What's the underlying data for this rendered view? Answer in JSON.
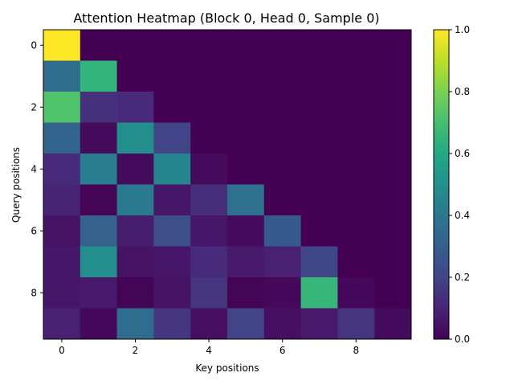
{
  "chart_data": {
    "type": "heatmap",
    "title": "Attention Heatmap (Block 0, Head 0, Sample 0)",
    "xlabel": "Key positions",
    "ylabel": "Query positions",
    "x_ticks": [
      0,
      2,
      4,
      6,
      8
    ],
    "y_ticks": [
      0,
      2,
      4,
      6,
      8
    ],
    "colorbar_ticks": [
      "0.0",
      "0.2",
      "0.4",
      "0.6",
      "0.8",
      "1.0"
    ],
    "colormap": "viridis",
    "vmin": 0.0,
    "vmax": 1.0,
    "rows": 10,
    "cols": 10,
    "values": [
      [
        1.0,
        0.0,
        0.0,
        0.0,
        0.0,
        0.0,
        0.0,
        0.0,
        0.0,
        0.0
      ],
      [
        0.35,
        0.65,
        0.0,
        0.0,
        0.0,
        0.0,
        0.0,
        0.0,
        0.0,
        0.0
      ],
      [
        0.72,
        0.14,
        0.12,
        0.0,
        0.0,
        0.0,
        0.0,
        0.0,
        0.0,
        0.0
      ],
      [
        0.32,
        0.03,
        0.49,
        0.2,
        0.0,
        0.0,
        0.0,
        0.0,
        0.0,
        0.0
      ],
      [
        0.12,
        0.42,
        0.03,
        0.46,
        0.03,
        0.0,
        0.0,
        0.0,
        0.0,
        0.0
      ],
      [
        0.1,
        0.01,
        0.41,
        0.06,
        0.13,
        0.37,
        0.0,
        0.0,
        0.0,
        0.0
      ],
      [
        0.05,
        0.31,
        0.08,
        0.24,
        0.06,
        0.03,
        0.28,
        0.0,
        0.0,
        0.0
      ],
      [
        0.06,
        0.49,
        0.05,
        0.06,
        0.12,
        0.07,
        0.09,
        0.21,
        0.0,
        0.0
      ],
      [
        0.06,
        0.07,
        0.01,
        0.05,
        0.15,
        0.01,
        0.02,
        0.66,
        0.02,
        0.0
      ],
      [
        0.09,
        0.02,
        0.35,
        0.16,
        0.04,
        0.2,
        0.04,
        0.07,
        0.15,
        0.03
      ]
    ]
  }
}
